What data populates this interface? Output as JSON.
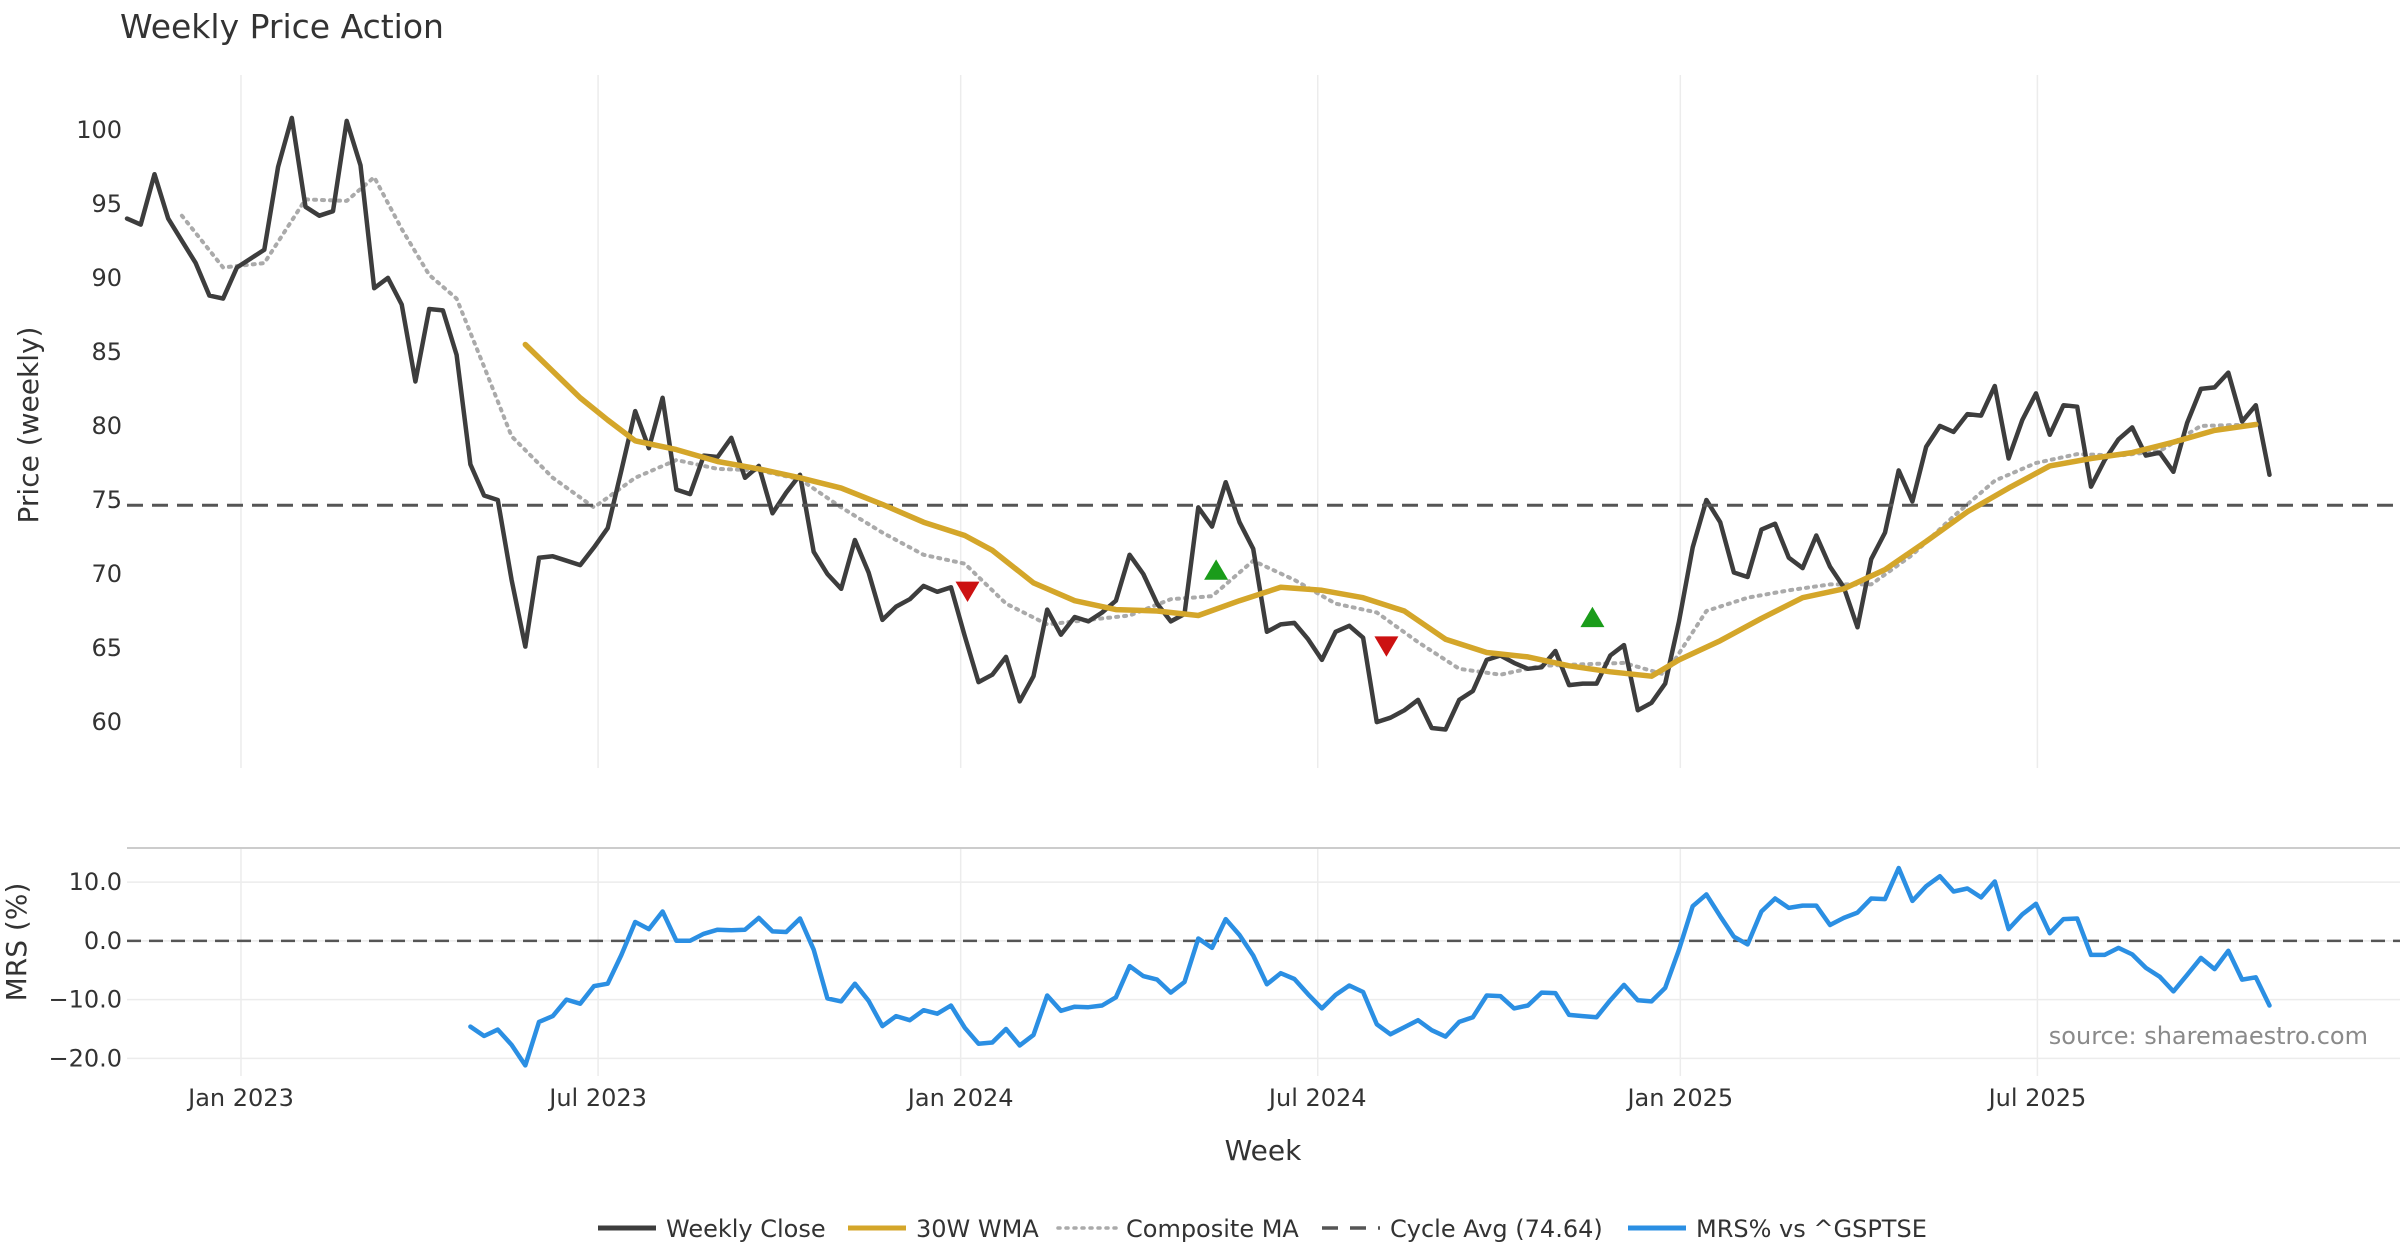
{
  "chart_data": {
    "type": "line",
    "title": "Weekly Price Action",
    "source_label": "source: sharemaestro.com",
    "xlabel": "Week",
    "x_ticks": [
      "Jan 2023",
      "Jul 2023",
      "Jan 2024",
      "Jul 2024",
      "Jan 2025",
      "Jul 2025"
    ],
    "x_range_weeks": [
      0,
      165.5
    ],
    "x_tick_weeks": [
      8.3,
      34.3,
      60.7,
      86.7,
      113.1,
      139.1
    ],
    "price_panel": {
      "ylabel": "Price (weekly)",
      "ylim": [
        56.9,
        103.7
      ],
      "yticks": [
        60,
        65,
        70,
        75,
        80,
        85,
        90,
        95,
        100
      ],
      "cycle_avg": 74.64,
      "weekly_close": [
        94.0,
        93.6,
        97.0,
        94.0,
        92.5,
        91.0,
        88.8,
        88.6,
        90.7,
        91.3,
        91.9,
        97.5,
        100.8,
        94.8,
        94.2,
        94.5,
        100.6,
        97.6,
        89.3,
        90.0,
        88.2,
        83.0,
        87.9,
        87.8,
        84.8,
        77.4,
        75.3,
        75.0,
        69.6,
        65.1,
        71.1,
        71.2,
        70.9,
        70.6,
        71.8,
        73.1,
        77.0,
        81.0,
        78.5,
        81.9,
        75.7,
        75.4,
        78.0,
        77.9,
        79.2,
        76.5,
        77.3,
        74.1,
        75.5,
        76.7,
        71.5,
        70.0,
        69.0,
        72.3,
        70.1,
        66.9,
        67.8,
        68.3,
        69.2,
        68.8,
        69.1,
        65.8,
        62.7,
        63.2,
        64.4,
        61.4,
        63.1,
        67.6,
        65.9,
        67.1,
        66.8,
        67.4,
        68.2,
        71.3,
        70.0,
        68.0,
        66.8,
        67.3,
        74.5,
        73.2,
        76.2,
        73.5,
        71.7,
        66.1,
        66.6,
        66.7,
        65.6,
        64.2,
        66.1,
        66.5,
        65.7,
        60.0,
        60.3,
        60.8,
        61.5,
        59.6,
        59.5,
        61.5,
        62.1,
        64.2,
        64.5,
        64.0,
        63.6,
        63.7,
        64.8,
        62.5,
        62.6,
        62.6,
        64.5,
        65.2,
        60.8,
        61.3,
        62.6,
        66.8,
        71.8,
        75.0,
        73.5,
        70.1,
        69.8,
        73.0,
        73.4,
        71.1,
        70.4,
        72.6,
        70.5,
        69.1,
        66.4,
        71.0,
        72.8,
        77.0,
        74.9,
        78.6,
        80.0,
        79.6,
        80.8,
        80.7,
        82.7,
        77.8,
        80.4,
        82.2,
        79.4,
        81.4,
        81.3,
        75.9,
        77.7,
        79.1,
        79.9,
        78.0,
        78.2,
        76.9,
        80.2,
        82.5,
        82.6,
        83.6,
        80.3,
        81.4,
        76.7
      ],
      "wma30": [
        [
          29,
          85.5
        ],
        [
          31,
          83.7
        ],
        [
          33,
          81.9
        ],
        [
          35,
          80.4
        ],
        [
          37,
          79.0
        ],
        [
          40,
          78.4
        ],
        [
          43,
          77.6
        ],
        [
          46,
          77.1
        ],
        [
          49,
          76.5
        ],
        [
          52,
          75.8
        ],
        [
          55,
          74.7
        ],
        [
          58,
          73.5
        ],
        [
          61,
          72.6
        ],
        [
          63,
          71.6
        ],
        [
          66,
          69.4
        ],
        [
          69,
          68.2
        ],
        [
          72,
          67.6
        ],
        [
          75,
          67.5
        ],
        [
          78,
          67.2
        ],
        [
          81,
          68.2
        ],
        [
          84,
          69.1
        ],
        [
          87,
          68.9
        ],
        [
          90,
          68.4
        ],
        [
          93,
          67.5
        ],
        [
          96,
          65.6
        ],
        [
          99,
          64.7
        ],
        [
          102,
          64.4
        ],
        [
          105,
          63.8
        ],
        [
          108,
          63.4
        ],
        [
          111,
          63.1
        ],
        [
          113,
          64.2
        ],
        [
          116,
          65.5
        ],
        [
          119,
          67.0
        ],
        [
          122,
          68.4
        ],
        [
          125,
          69.0
        ],
        [
          128,
          70.3
        ],
        [
          131,
          72.2
        ],
        [
          134,
          74.2
        ],
        [
          137,
          75.8
        ],
        [
          140,
          77.3
        ],
        [
          143,
          77.8
        ],
        [
          146,
          78.2
        ],
        [
          149,
          78.9
        ],
        [
          152,
          79.7
        ],
        [
          155,
          80.1
        ]
      ],
      "composite_ma": [
        [
          4,
          94.2
        ],
        [
          7,
          90.7
        ],
        [
          10,
          91.0
        ],
        [
          13,
          95.3
        ],
        [
          16,
          95.2
        ],
        [
          18,
          96.8
        ],
        [
          20,
          93.3
        ],
        [
          22,
          90.2
        ],
        [
          24,
          88.6
        ],
        [
          26,
          84.0
        ],
        [
          28,
          79.3
        ],
        [
          31,
          76.5
        ],
        [
          34,
          74.5
        ],
        [
          37,
          76.5
        ],
        [
          40,
          77.7
        ],
        [
          43,
          77.1
        ],
        [
          46,
          77.0
        ],
        [
          49,
          76.4
        ],
        [
          52,
          74.5
        ],
        [
          55,
          72.8
        ],
        [
          58,
          71.3
        ],
        [
          61,
          70.7
        ],
        [
          64,
          68.0
        ],
        [
          67,
          66.6
        ],
        [
          70,
          66.9
        ],
        [
          73,
          67.2
        ],
        [
          76,
          68.3
        ],
        [
          79,
          68.5
        ],
        [
          82,
          70.9
        ],
        [
          85,
          69.6
        ],
        [
          88,
          68.0
        ],
        [
          91,
          67.4
        ],
        [
          94,
          65.4
        ],
        [
          97,
          63.6
        ],
        [
          100,
          63.2
        ],
        [
          103,
          63.8
        ],
        [
          106,
          63.9
        ],
        [
          109,
          64.0
        ],
        [
          112,
          63.2
        ],
        [
          115,
          67.5
        ],
        [
          118,
          68.4
        ],
        [
          121,
          68.9
        ],
        [
          124,
          69.3
        ],
        [
          127,
          69.3
        ],
        [
          130,
          71.3
        ],
        [
          133,
          73.9
        ],
        [
          136,
          76.3
        ],
        [
          139,
          77.5
        ],
        [
          142,
          78.1
        ],
        [
          145,
          78.0
        ],
        [
          148,
          78.3
        ],
        [
          151,
          80.0
        ],
        [
          155,
          80.1
        ]
      ],
      "buy_signals": [
        [
          79.3,
          70.3
        ],
        [
          106.7,
          67.1
        ]
      ],
      "sell_signals": [
        [
          61.2,
          68.8
        ],
        [
          91.7,
          65.1
        ]
      ]
    },
    "mrs_panel": {
      "ylabel": "MRS (%)",
      "ylim": [
        -23.0,
        15.8
      ],
      "yticks": [
        -20.0,
        -10.0,
        0.0,
        10.0
      ],
      "ytick_labels": [
        "−20.0",
        "−10.0",
        "0.0",
        "10.0"
      ],
      "start_week": 25,
      "values": [
        -14.6,
        -16.2,
        -15.1,
        -17.7,
        -21.2,
        -13.8,
        -12.8,
        -10.0,
        -10.7,
        -7.7,
        -7.3,
        -2.4,
        3.2,
        2.0,
        5.0,
        0.0,
        0.0,
        1.2,
        1.9,
        1.8,
        1.9,
        3.9,
        1.6,
        1.5,
        3.8,
        -1.5,
        -9.8,
        -10.3,
        -7.3,
        -10.2,
        -14.5,
        -12.8,
        -13.5,
        -11.8,
        -12.4,
        -11.0,
        -14.8,
        -17.5,
        -17.3,
        -15.0,
        -17.8,
        -16.0,
        -9.3,
        -11.9,
        -11.2,
        -11.3,
        -11.0,
        -9.6,
        -4.3,
        -6.0,
        -6.6,
        -8.8,
        -7.0,
        0.4,
        -1.2,
        3.7,
        1.0,
        -2.5,
        -7.4,
        -5.5,
        -6.5,
        -9.1,
        -11.5,
        -9.2,
        -7.6,
        -8.7,
        -14.2,
        -15.9,
        -14.7,
        -13.5,
        -15.2,
        -16.3,
        -13.8,
        -13.0,
        -9.3,
        -9.4,
        -11.5,
        -11.0,
        -8.8,
        -8.9,
        -12.6,
        -12.8,
        -13.0,
        -10.1,
        -7.5,
        -10.1,
        -10.3,
        -8.0,
        -1.5,
        5.9,
        7.9,
        4.2,
        0.7,
        -0.6,
        5.0,
        7.2,
        5.6,
        6.0,
        6.0,
        2.7,
        3.9,
        4.8,
        7.2,
        7.1,
        12.4,
        6.8,
        9.3,
        11.0,
        8.4,
        8.9,
        7.4,
        10.1,
        2.0,
        4.5,
        6.3,
        1.3,
        3.7,
        3.8,
        -2.4,
        -2.4,
        -1.2,
        -2.3,
        -4.6,
        -6.1,
        -8.6,
        -5.8,
        -2.9,
        -4.8,
        -1.7,
        -6.6,
        -6.2,
        -11.0
      ]
    },
    "legend": [
      {
        "label": "Weekly Close",
        "color": "#3d3d3d",
        "style": "solid"
      },
      {
        "label": "30W WMA",
        "color": "#d4a62a",
        "style": "solid"
      },
      {
        "label": "Composite MA",
        "color": "#aaaaaa",
        "style": "dotted"
      },
      {
        "label": "Cycle Avg (74.64)",
        "color": "#555555",
        "style": "dashed"
      },
      {
        "label": "MRS% vs ^GSPTSE",
        "color": "#2b8fe3",
        "style": "solid"
      }
    ],
    "colors": {
      "close": "#3d3d3d",
      "wma": "#d4a62a",
      "composite": "#aaaaaa",
      "cycle": "#555555",
      "mrs": "#2b8fe3",
      "buy": "#1a9c1a",
      "sell": "#cc1111",
      "grid": "#ececec"
    }
  }
}
